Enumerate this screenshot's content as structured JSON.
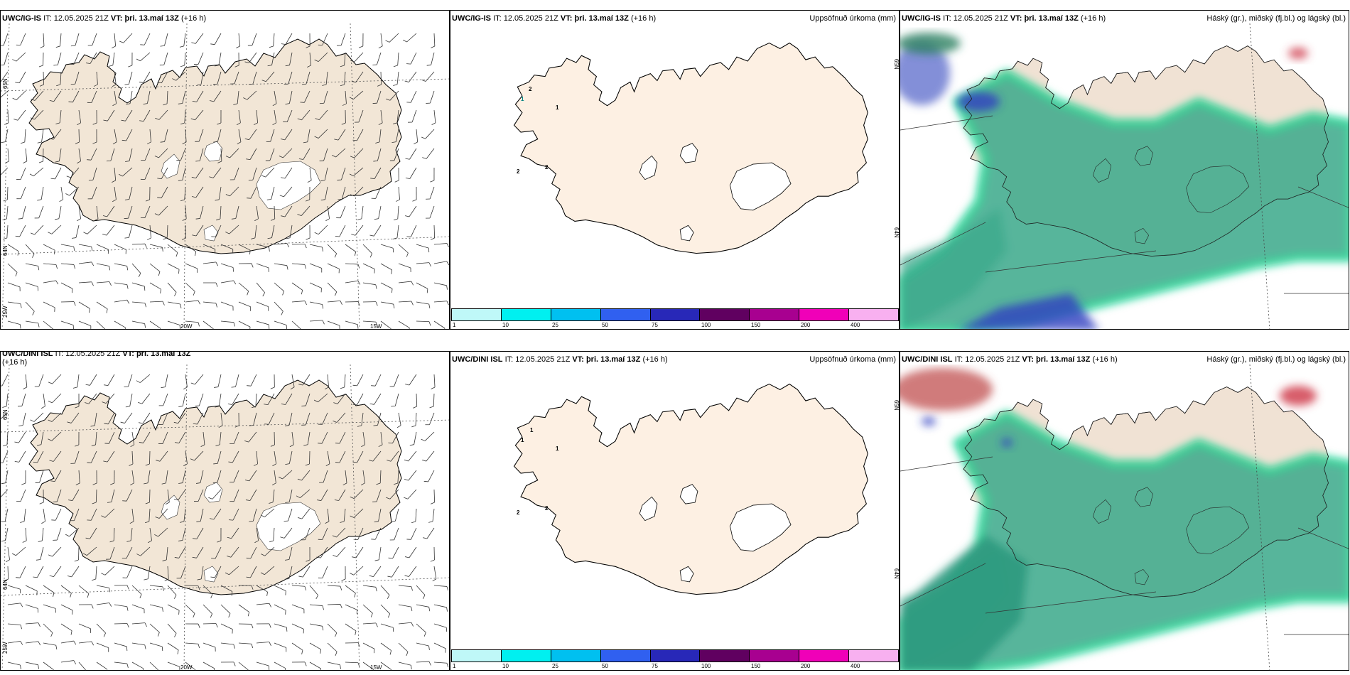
{
  "rows": [
    {
      "model": "UWC/IG-IS",
      "it_label": "IT:",
      "it_value": "12.05.2025 21Z",
      "vt_label": "VT:",
      "vt_value": "þri. 13.maí 13Z",
      "lead": "(+16 h)",
      "wind_lat_labels": [
        "65N",
        "64N"
      ],
      "wind_lon_labels": [
        "25W",
        "20W",
        "15W"
      ],
      "precip_lat_labels": [
        "65N",
        "64N"
      ],
      "precip_station_values": [
        "2",
        "1",
        "1",
        "2",
        "2"
      ],
      "cloud_title": "Háský (gr.), miðský (fj.bl.) og lágský (bl.)"
    },
    {
      "model": "UWC/DINI ISL",
      "it_label": "IT:",
      "it_value": "12.05.2025 21Z",
      "vt_label": "VT:",
      "vt_value": "þri. 13.maí 13Z",
      "lead": "(+16 h)",
      "wind_lat_labels": [
        "65N",
        "64N"
      ],
      "wind_lon_labels": [
        "25W",
        "20W",
        "15W"
      ],
      "precip_lat_labels": [
        "65N",
        "64N"
      ],
      "precip_station_values": [
        "1",
        "1",
        "1",
        "2",
        "2"
      ],
      "cloud_title": "Háský (gr.), miðský (fj.bl.) og lágský (bl.)"
    }
  ],
  "precip_title": "Uppsöfnuð úrkoma (mm)",
  "colorbar": {
    "colors": [
      "#bff8f8",
      "#00f0f0",
      "#00c0f0",
      "#3060f0",
      "#2828b8",
      "#600060",
      "#a80090",
      "#f000b8",
      "#f8b0f0"
    ],
    "ticks": [
      "1",
      "10",
      "25",
      "50",
      "75",
      "100",
      "150",
      "200",
      "400"
    ]
  },
  "colors": {
    "land_wind": "#f2e6d6",
    "land_precip": "#fdf0e3",
    "cloud_low": "#3aa88a",
    "cloud_edge": "#00d08a",
    "cloud_mid": "#2f40c0",
    "cloud_high": "#d04050"
  }
}
